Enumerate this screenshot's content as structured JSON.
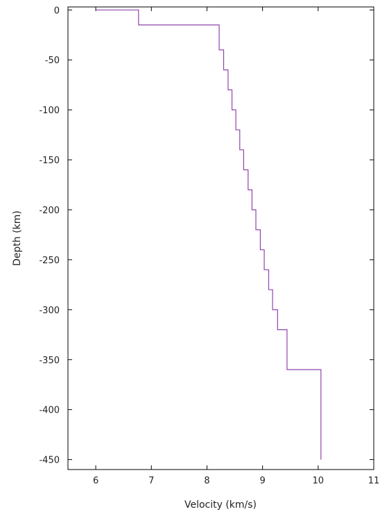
{
  "chart_data": {
    "type": "line",
    "title": "",
    "xlabel": "Velocity (km/s)",
    "ylabel": "Depth (km)",
    "xlim": [
      5.5,
      11
    ],
    "ylim": [
      -460,
      3
    ],
    "x_ticks": [
      6,
      7,
      8,
      9,
      10,
      11
    ],
    "y_ticks": [
      0,
      -50,
      -100,
      -150,
      -200,
      -250,
      -300,
      -350,
      -400,
      -450
    ],
    "x_tick_labels": [
      "6",
      "7",
      "8",
      "9",
      "10",
      "11"
    ],
    "y_tick_labels": [
      "0",
      "-50",
      "-100",
      "-150",
      "-200",
      "-250",
      "-300",
      "-350",
      "-400",
      "-450"
    ],
    "grid": false,
    "line_color": "#8e44ad",
    "series": [
      {
        "x": [
          6.0,
          6.77,
          6.77,
          8.22,
          8.22,
          8.3,
          8.3,
          8.38,
          8.38,
          8.45,
          8.45,
          8.52,
          8.52,
          8.59,
          8.59,
          8.66,
          8.66,
          8.74,
          8.74,
          8.81,
          8.81,
          8.88,
          8.88,
          8.96,
          8.96,
          9.03,
          9.03,
          9.11,
          9.11,
          9.18,
          9.18,
          9.27,
          9.27,
          9.44,
          9.44,
          10.05,
          10.05
        ],
        "y": [
          0,
          0,
          -15,
          -15,
          -40,
          -40,
          -60,
          -60,
          -80,
          -80,
          -100,
          -100,
          -120,
          -120,
          -140,
          -140,
          -160,
          -160,
          -180,
          -180,
          -200,
          -200,
          -220,
          -220,
          -240,
          -240,
          -260,
          -260,
          -280,
          -280,
          -300,
          -300,
          -320,
          -320,
          -360,
          -360,
          -450
        ]
      }
    ]
  }
}
